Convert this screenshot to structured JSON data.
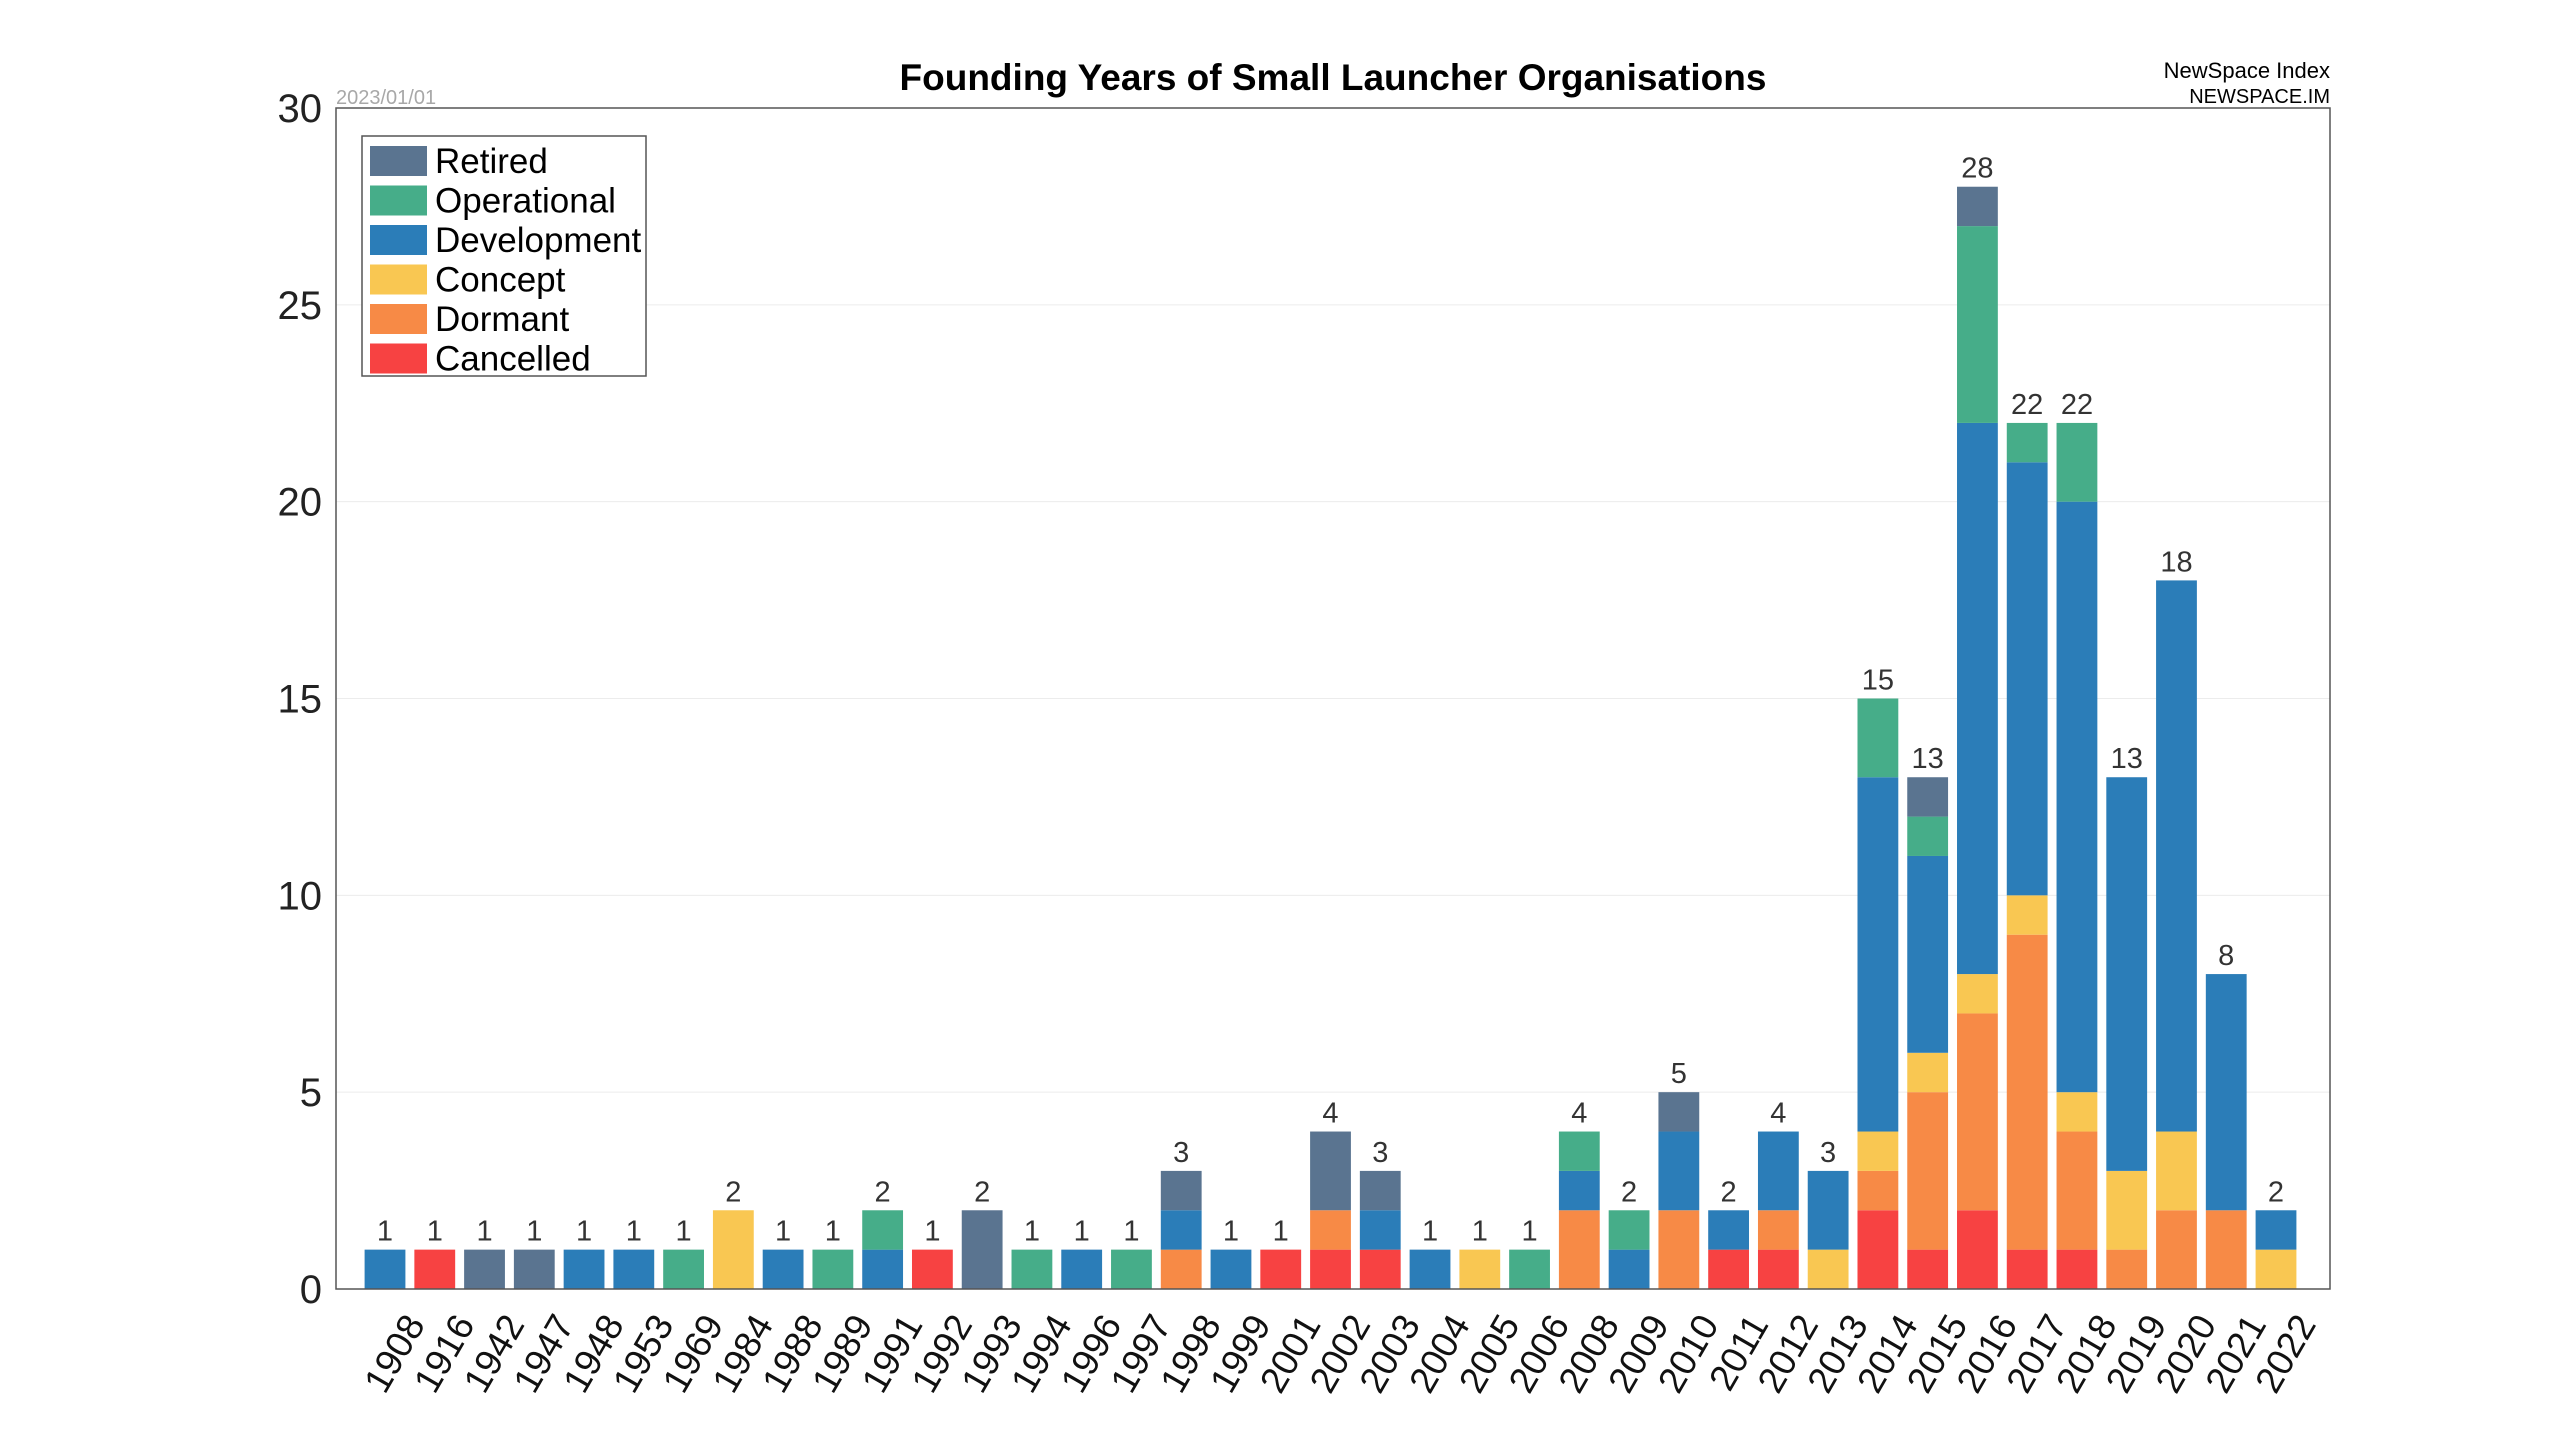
{
  "chart_data": {
    "type": "bar",
    "stacked": true,
    "title": "Founding Years of Small Launcher Organisations",
    "date_stamp": "2023/01/01",
    "source": {
      "name": "NewSpace Index",
      "url": "NEWSPACE.IM"
    },
    "xlabel": "",
    "ylabel": "",
    "ylim": [
      0,
      30
    ],
    "yticks": [
      0,
      5,
      10,
      15,
      20,
      25,
      30
    ],
    "grid": "horizontal",
    "legend_position": "top-left",
    "categories": [
      "1908",
      "1916",
      "1942",
      "1947",
      "1948",
      "1953",
      "1969",
      "1984",
      "1988",
      "1989",
      "1991",
      "1992",
      "1993",
      "1994",
      "1996",
      "1997",
      "1998",
      "1999",
      "2001",
      "2002",
      "2003",
      "2004",
      "2005",
      "2006",
      "2008",
      "2009",
      "2010",
      "2011",
      "2012",
      "2013",
      "2014",
      "2015",
      "2016",
      "2017",
      "2018",
      "2019",
      "2020",
      "2021",
      "2022"
    ],
    "totals": [
      1,
      1,
      1,
      1,
      1,
      1,
      1,
      2,
      1,
      1,
      2,
      1,
      2,
      1,
      1,
      1,
      3,
      1,
      1,
      4,
      3,
      1,
      1,
      1,
      4,
      2,
      5,
      2,
      4,
      3,
      15,
      13,
      28,
      22,
      22,
      13,
      18,
      8,
      2
    ],
    "series": [
      {
        "name": "Cancelled",
        "color": "#f74242",
        "values": [
          0,
          1,
          0,
          0,
          0,
          0,
          0,
          0,
          0,
          0,
          0,
          1,
          0,
          0,
          0,
          0,
          0,
          0,
          1,
          1,
          1,
          0,
          0,
          0,
          0,
          0,
          0,
          1,
          1,
          0,
          2,
          1,
          2,
          1,
          1,
          0,
          0,
          0,
          0
        ]
      },
      {
        "name": "Dormant",
        "color": "#f78a46",
        "values": [
          0,
          0,
          0,
          0,
          0,
          0,
          0,
          0,
          0,
          0,
          0,
          0,
          0,
          0,
          0,
          0,
          1,
          0,
          0,
          1,
          0,
          0,
          0,
          0,
          2,
          0,
          2,
          0,
          1,
          0,
          1,
          4,
          5,
          8,
          3,
          1,
          2,
          2,
          0
        ]
      },
      {
        "name": "Concept",
        "color": "#f9c752",
        "values": [
          0,
          0,
          0,
          0,
          0,
          0,
          0,
          2,
          0,
          0,
          0,
          0,
          0,
          0,
          0,
          0,
          0,
          0,
          0,
          0,
          0,
          0,
          1,
          0,
          0,
          0,
          0,
          0,
          0,
          1,
          1,
          1,
          1,
          1,
          1,
          2,
          2,
          0,
          1
        ]
      },
      {
        "name": "Development",
        "color": "#2b7db8",
        "values": [
          1,
          0,
          0,
          0,
          1,
          1,
          0,
          0,
          1,
          0,
          1,
          0,
          0,
          0,
          1,
          0,
          1,
          1,
          0,
          0,
          1,
          1,
          0,
          0,
          1,
          1,
          2,
          1,
          2,
          2,
          9,
          5,
          14,
          11,
          15,
          10,
          14,
          6,
          1
        ]
      },
      {
        "name": "Operational",
        "color": "#46ad89",
        "values": [
          0,
          0,
          0,
          0,
          0,
          0,
          1,
          0,
          0,
          1,
          1,
          0,
          0,
          1,
          0,
          1,
          0,
          0,
          0,
          0,
          0,
          0,
          0,
          1,
          1,
          1,
          0,
          0,
          0,
          0,
          2,
          1,
          5,
          1,
          2,
          0,
          0,
          0,
          0
        ]
      },
      {
        "name": "Retired",
        "color": "#5a7490",
        "values": [
          0,
          0,
          1,
          1,
          0,
          0,
          0,
          0,
          0,
          0,
          0,
          0,
          2,
          0,
          0,
          0,
          1,
          0,
          0,
          2,
          1,
          0,
          0,
          0,
          0,
          0,
          1,
          0,
          0,
          0,
          0,
          1,
          1,
          0,
          0,
          0,
          0,
          0,
          0
        ]
      }
    ],
    "legend_order": [
      "Retired",
      "Operational",
      "Development",
      "Concept",
      "Dormant",
      "Cancelled"
    ]
  }
}
